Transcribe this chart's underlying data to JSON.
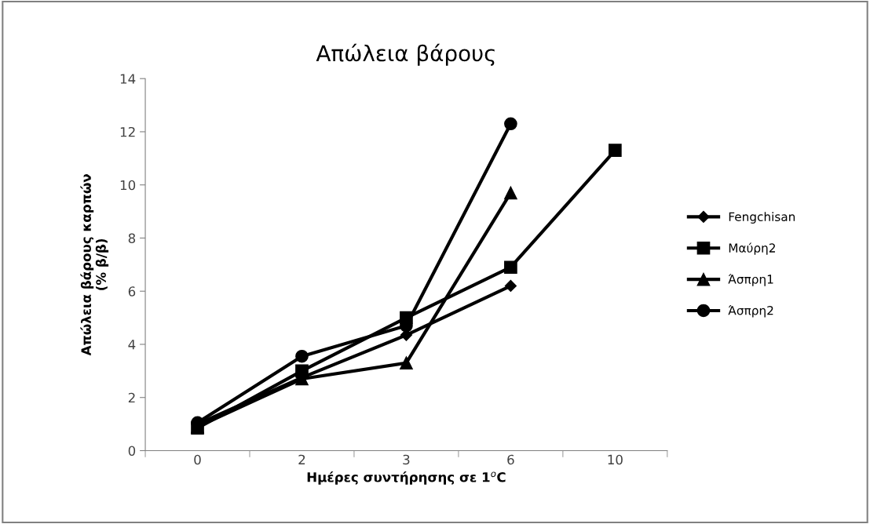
{
  "chart_data": {
    "type": "line",
    "title": "Απώλεια βάρους",
    "xlabel": "Ημέρες συντήρησης σε 1$^{o}$C",
    "ylabel": "Απώλεια βάρους καρπών\n(% β/β)",
    "categories": [
      "0",
      "2",
      "3",
      "6",
      "10"
    ],
    "series": [
      {
        "name": "Fengchisan",
        "color": "#000000",
        "marker": "diamond",
        "values": [
          1.0,
          2.75,
          4.35,
          6.2,
          null
        ]
      },
      {
        "name": "Μαύρη2",
        "color": "#000000",
        "marker": "square",
        "values": [
          0.85,
          3.0,
          5.0,
          6.9,
          11.3
        ]
      },
      {
        "name": "Άσπρη1",
        "color": "#000000",
        "marker": "triangle",
        "values": [
          0.9,
          2.7,
          3.3,
          9.7,
          null
        ]
      },
      {
        "name": "Άσπρη2",
        "color": "#000000",
        "marker": "circle",
        "values": [
          1.05,
          3.55,
          4.7,
          12.3,
          null
        ]
      }
    ],
    "ylim": [
      0,
      14
    ],
    "yticks": [
      0,
      2,
      4,
      6,
      8,
      10,
      12,
      14
    ],
    "grid": false,
    "legend": "right",
    "line_style": "solid"
  }
}
